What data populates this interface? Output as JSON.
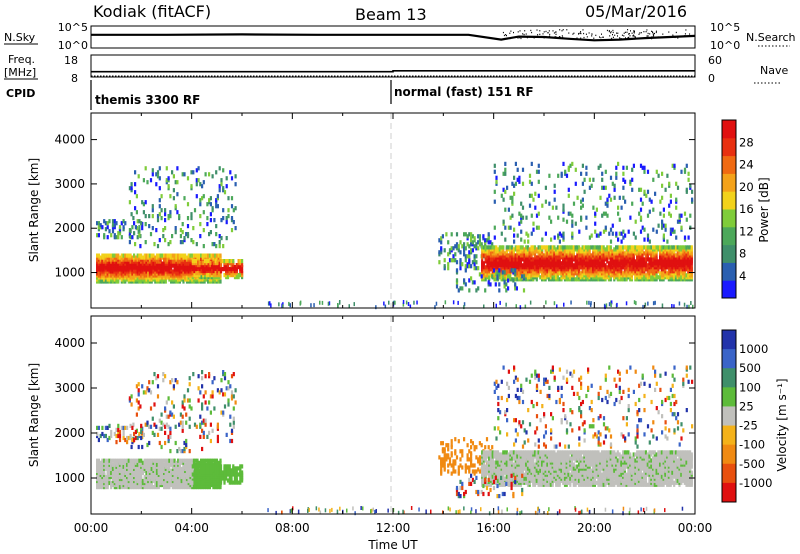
{
  "header": {
    "site": "Kodiak (fitACF)",
    "beam": "Beam 13",
    "date": "05/Mar/2016"
  },
  "side_labels": {
    "nsky": "N.Sky",
    "freq_line1": "Freq.",
    "freq_line2": "[MHz]",
    "cpid": "CPID",
    "nsearch": "N.Search",
    "nave": "Nave"
  },
  "modes": {
    "left": "themis 3300 RF",
    "right": "normal (fast) 151 RF"
  },
  "colors": {
    "frame": "#000000",
    "dashed_line": "#cfcfcf",
    "velocity_gray": "#c0c0bc"
  },
  "chart_data": [
    {
      "type": "line",
      "panel": "noise",
      "yticks_left": [
        "10^5",
        "10^0"
      ],
      "yticks_right": [
        "10^5",
        "10^0"
      ],
      "ylabel_left": "N.Sky",
      "ylabel_right": "N.Search",
      "series": [
        {
          "x": [
            0,
            3,
            6,
            9,
            12,
            15,
            16.3,
            17,
            18,
            19,
            20,
            21,
            22,
            23,
            24
          ],
          "y_level": [
            0.6,
            0.6,
            0.62,
            0.6,
            0.6,
            0.6,
            0.38,
            0.52,
            0.5,
            0.42,
            0.35,
            0.38,
            0.45,
            0.5,
            0.55
          ]
        }
      ]
    },
    {
      "type": "line",
      "panel": "frequency",
      "ylabel": "Freq. [MHz]",
      "ylabel_right": "Nave",
      "yticks_left": [
        "18",
        "8"
      ],
      "yticks_right": [
        "60",
        "0"
      ],
      "series": [
        {
          "name": "Freq.",
          "x": [
            0,
            12,
            12,
            24
          ],
          "y": [
            10.4,
            10.4,
            10.8,
            10.8
          ]
        }
      ]
    },
    {
      "type": "heatmap",
      "panel": "power",
      "xlabel": "",
      "ylabel": "Slant Range [km]",
      "x_range_hours": [
        0,
        24
      ],
      "y_range_km": [
        200,
        4600
      ],
      "yticks": [
        "1000",
        "2000",
        "3000",
        "4000"
      ],
      "colorbar_label": "Power [dB]",
      "colorbar_ticks": [
        "4",
        "8",
        "12",
        "16",
        "20",
        "24",
        "28"
      ],
      "colorbar_colors": [
        "#1a1aff",
        "#2a5fb0",
        "#3f8f6a",
        "#4ca85a",
        "#7fcc3a",
        "#f2d21b",
        "#f4a21a",
        "#f06a12",
        "#e83010",
        "#e01010"
      ]
    },
    {
      "type": "heatmap",
      "panel": "velocity",
      "xlabel": "Time UT",
      "ylabel": "Slant Range [km]",
      "x_range_hours": [
        0,
        24
      ],
      "y_range_km": [
        200,
        4600
      ],
      "yticks": [
        "1000",
        "2000",
        "3000",
        "4000"
      ],
      "xticks": [
        "00:00",
        "04:00",
        "08:00",
        "12:00",
        "16:00",
        "20:00",
        "00:00"
      ],
      "colorbar_label": "Velocity [m s⁻¹]",
      "colorbar_ticks": [
        "1000",
        "500",
        "100",
        "25",
        "-25",
        "-100",
        "-500",
        "-1000"
      ],
      "colorbar_colors": [
        "#2233aa",
        "#3a64c8",
        "#3f8f6a",
        "#5dbb3a",
        "#c0c0bc",
        "#f4b21a",
        "#f08a12",
        "#e8500e",
        "#e01010"
      ]
    }
  ]
}
